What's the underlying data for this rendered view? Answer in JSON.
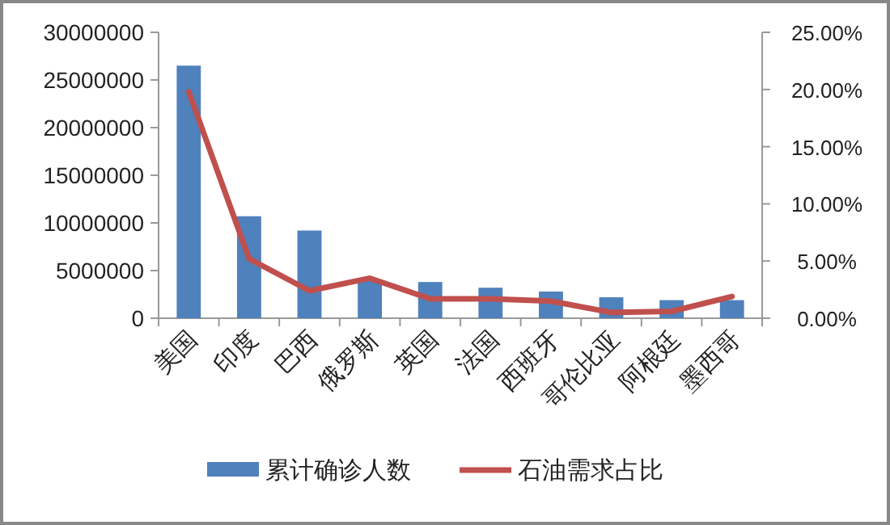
{
  "chart_data": {
    "type": "bar",
    "categories": [
      "美国",
      "印度",
      "巴西",
      "俄罗斯",
      "英国",
      "法国",
      "西班牙",
      "哥伦比亚",
      "阿根廷",
      "墨西哥"
    ],
    "series": [
      {
        "name": "累计确诊人数",
        "color": "#4f81bd",
        "values": [
          26500000,
          10700000,
          9200000,
          3900000,
          3800000,
          3200000,
          2800000,
          2200000,
          1900000,
          1900000
        ]
      },
      {
        "name": "石油需求占比",
        "type": "line",
        "axis": "y2",
        "color": "#c0504d",
        "values": [
          19.8,
          5.2,
          2.4,
          3.5,
          1.7,
          1.7,
          1.5,
          0.5,
          0.6,
          1.9
        ]
      }
    ],
    "ylim": [
      0,
      30000000
    ],
    "yticks": [
      0,
      5000000,
      10000000,
      15000000,
      20000000,
      25000000,
      30000000
    ],
    "y2lim": [
      0,
      25
    ],
    "y2ticks": [
      {
        "value": 0,
        "label": "0.00%"
      },
      {
        "value": 5,
        "label": "5.00%"
      },
      {
        "value": 10,
        "label": "10.00%"
      },
      {
        "value": 15,
        "label": "15.00%"
      },
      {
        "value": 20,
        "label": "20.00%"
      },
      {
        "value": 25,
        "label": "25.00%"
      }
    ],
    "legend": "bottom"
  }
}
